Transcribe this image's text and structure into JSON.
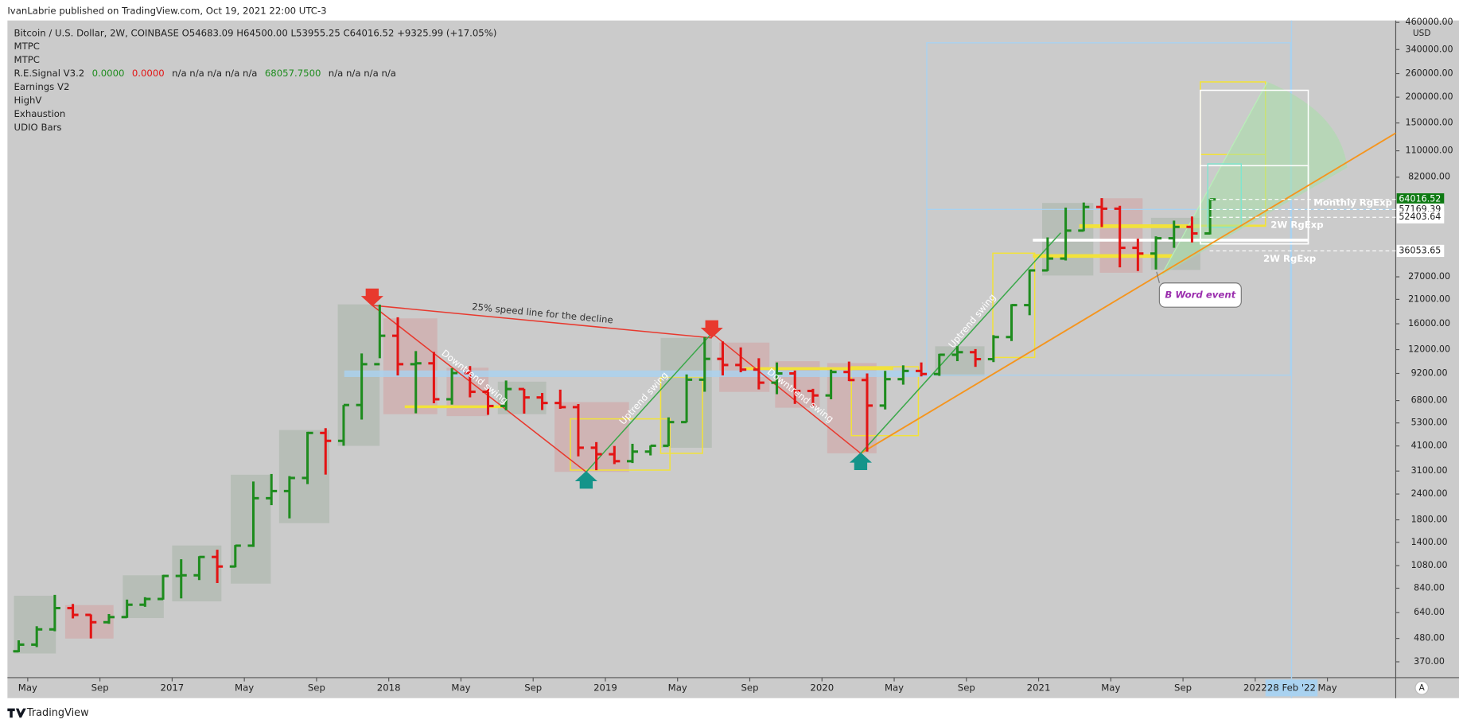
{
  "header": {
    "publisher": "IvanLabrie published on TradingView.com, Oct 19, 2021 22:00 UTC-3"
  },
  "footer": {
    "brand": "TradingView",
    "auto_button": "A"
  },
  "indicators": [
    "MTPC",
    "MTPC",
    "Earnings V2",
    "HighV",
    "Exhaustion",
    "UDIO Bars"
  ],
  "signal": [
    "R.E.Signal V3.2",
    "0.0000",
    "0.0000",
    "n/a  n/a  n/a  n/a  n/a",
    "68057.7500",
    "n/a  n/a  n/a  n/a"
  ],
  "chart_data": {
    "type": "ohlc",
    "title": "Bitcoin / U.S. Dollar, 2W, COINBASE  O54683.09  H64500.00  L53955.25  C64016.52  +9325.99 (+17.05%)",
    "y_unit": "USD",
    "log_scale": true,
    "up_color": "#1e8c1e",
    "down_color": "#e31414",
    "x": [
      "2016-04",
      "2016-05",
      "2016-06",
      "2016-07",
      "2016-08",
      "2016-09",
      "2016-10",
      "2016-11",
      "2016-12",
      "2017-01",
      "2017-02",
      "2017-03",
      "2017-04",
      "2017-05",
      "2017-06",
      "2017-07",
      "2017-08",
      "2017-09",
      "2017-10",
      "2017-11",
      "2017-12",
      "2018-01",
      "2018-02",
      "2018-03",
      "2018-04",
      "2018-05",
      "2018-06",
      "2018-07",
      "2018-08",
      "2018-09",
      "2018-10",
      "2018-11",
      "2018-12",
      "2019-01",
      "2019-02",
      "2019-03",
      "2019-04",
      "2019-05",
      "2019-06",
      "2019-07",
      "2019-08",
      "2019-09",
      "2019-10",
      "2019-11",
      "2019-12",
      "2020-01",
      "2020-02",
      "2020-03",
      "2020-04",
      "2020-05",
      "2020-06",
      "2020-07",
      "2020-08",
      "2020-09",
      "2020-10",
      "2020-11",
      "2020-12",
      "2021-01",
      "2021-02",
      "2021-03",
      "2021-04",
      "2021-05",
      "2021-06",
      "2021-07",
      "2021-08",
      "2021-09",
      "2021-10"
    ],
    "open": [
      416,
      448,
      531,
      673,
      624,
      575,
      609,
      699,
      745,
      963,
      970,
      1190,
      1070,
      1350,
      2290,
      2480,
      2870,
      4740,
      4340,
      6470,
      10200,
      14000,
      10200,
      10300,
      6900,
      9240,
      7500,
      6400,
      7730,
      7040,
      6620,
      6320,
      4020,
      3740,
      3460,
      3850,
      4110,
      5350,
      8580,
      10820,
      10110,
      9600,
      8300,
      9200,
      7570,
      7200,
      9350,
      8550,
      6430,
      8630,
      9460,
      9140,
      11330,
      11660,
      10790,
      13800,
      19700,
      29000,
      33100,
      45200,
      58800,
      57700,
      37300,
      35000,
      41500,
      47100,
      43800
    ],
    "high": [
      470,
      550,
      780,
      705,
      627,
      630,
      740,
      760,
      975,
      1160,
      1200,
      1290,
      1360,
      2760,
      3000,
      2930,
      4800,
      5000,
      6470,
      11500,
      19800,
      17200,
      11800,
      11700,
      9750,
      9990,
      7760,
      8500,
      7750,
      7400,
      7680,
      6540,
      4280,
      4100,
      4200,
      4120,
      5640,
      9100,
      13800,
      13150,
      12300,
      10900,
      10400,
      9500,
      7750,
      9600,
      10500,
      9200,
      9470,
      10070,
      10400,
      11450,
      12470,
      12070,
      14100,
      19900,
      29300,
      41900,
      58400,
      61800,
      64900,
      59600,
      41300,
      42400,
      50500,
      52900,
      64500
    ],
    "low": [
      412,
      436,
      520,
      600,
      480,
      565,
      604,
      683,
      740,
      750,
      920,
      890,
      1060,
      1330,
      2120,
      1830,
      2680,
      2980,
      4110,
      5500,
      10900,
      9000,
      5900,
      6600,
      6500,
      7050,
      5800,
      6100,
      5880,
      6120,
      6200,
      3650,
      3130,
      3350,
      3390,
      3690,
      4090,
      5330,
      7500,
      9000,
      9320,
      7700,
      7300,
      6550,
      6420,
      6900,
      8450,
      3850,
      6160,
      8120,
      8900,
      8960,
      10550,
      9900,
      10440,
      13200,
      17600,
      28800,
      32400,
      44900,
      47000,
      30000,
      28800,
      29300,
      37300,
      39600,
      43300
    ],
    "close": [
      448,
      531,
      673,
      624,
      575,
      609,
      699,
      745,
      963,
      970,
      1190,
      1070,
      1350,
      2290,
      2480,
      2870,
      4740,
      4340,
      6470,
      10200,
      14000,
      10200,
      10300,
      6900,
      9240,
      7500,
      6400,
      7730,
      7040,
      6620,
      6320,
      4020,
      3740,
      3460,
      3850,
      4110,
      5350,
      8580,
      10820,
      10110,
      9600,
      8300,
      9200,
      7570,
      7200,
      9350,
      8550,
      6430,
      8630,
      9460,
      9140,
      11330,
      11660,
      10790,
      13800,
      19700,
      29000,
      33100,
      45200,
      58800,
      57700,
      37300,
      35000,
      41500,
      47100,
      43800,
      64016.52
    ],
    "ylim": [
      310,
      470000
    ],
    "yticks": [
      {
        "value": 460000,
        "label": "460000.00"
      },
      {
        "value": 340000,
        "label": "340000.00"
      },
      {
        "value": 260000,
        "label": "260000.00"
      },
      {
        "value": 200000,
        "label": "200000.00"
      },
      {
        "value": 150000,
        "label": "150000.00"
      },
      {
        "value": 110000,
        "label": "110000.00"
      },
      {
        "value": 82000,
        "label": "82000.00"
      },
      {
        "value": 27000,
        "label": "27000.00"
      },
      {
        "value": 21000,
        "label": "21000.00"
      },
      {
        "value": 16000,
        "label": "16000.00"
      },
      {
        "value": 12000,
        "label": "12000.00"
      },
      {
        "value": 9200,
        "label": "9200.00"
      },
      {
        "value": 6800,
        "label": "6800.00"
      },
      {
        "value": 5300,
        "label": "5300.00"
      },
      {
        "value": 4100,
        "label": "4100.00"
      },
      {
        "value": 3100,
        "label": "3100.00"
      },
      {
        "value": 2400,
        "label": "2400.00"
      },
      {
        "value": 1800,
        "label": "1800.00"
      },
      {
        "value": 1400,
        "label": "1400.00"
      },
      {
        "value": 1080,
        "label": "1080.00"
      },
      {
        "value": 840,
        "label": "840.00"
      },
      {
        "value": 640,
        "label": "640.00"
      },
      {
        "value": 480,
        "label": "480.00"
      },
      {
        "value": 370,
        "label": "370.00"
      }
    ],
    "price_labels": [
      {
        "value": 64016.52,
        "label": "64016.52",
        "current": true
      },
      {
        "value": 57169.39,
        "label": "57169.39"
      },
      {
        "value": 52403.64,
        "label": "52403.64"
      },
      {
        "value": 36053.65,
        "label": "36053.65"
      }
    ],
    "xticks": [
      {
        "value": "2016-05",
        "label": "May"
      },
      {
        "value": "2016-09",
        "label": "Sep"
      },
      {
        "value": "2017-01",
        "label": "2017"
      },
      {
        "value": "2017-05",
        "label": "May"
      },
      {
        "value": "2017-09",
        "label": "Sep"
      },
      {
        "value": "2018-01",
        "label": "2018"
      },
      {
        "value": "2018-05",
        "label": "May"
      },
      {
        "value": "2018-09",
        "label": "Sep"
      },
      {
        "value": "2019-01",
        "label": "2019"
      },
      {
        "value": "2019-05",
        "label": "May"
      },
      {
        "value": "2019-09",
        "label": "Sep"
      },
      {
        "value": "2020-01",
        "label": "2020"
      },
      {
        "value": "2020-05",
        "label": "May"
      },
      {
        "value": "2020-09",
        "label": "Sep"
      },
      {
        "value": "2021-01",
        "label": "2021"
      },
      {
        "value": "2021-05",
        "label": "May"
      },
      {
        "value": "2021-09",
        "label": "Sep"
      },
      {
        "value": "2022-01",
        "label": "2022"
      },
      {
        "value": "2022-05",
        "label": "May"
      }
    ],
    "crosshair_label": "28 Feb '22",
    "annotations": {
      "speed_line": "25% speed line for the decline",
      "downtrend_1": "Downtrend swing",
      "uptrend_1": "Uptrend swing",
      "downtrend_2": "Downtrend swing",
      "uptrend_2": "Uptrend swing",
      "event": "B Word event",
      "monthly_range": "Monthly RgExp",
      "range_2w_1": "2W RgExp",
      "range_2w_2": "2W RgExp"
    }
  }
}
